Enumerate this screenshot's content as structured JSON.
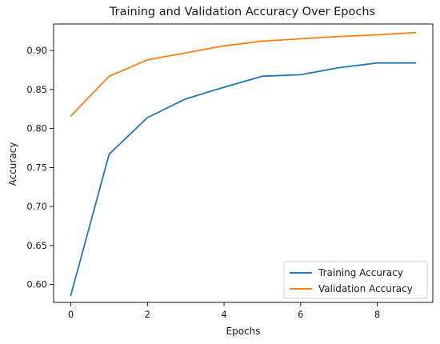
{
  "chart_data": {
    "type": "line",
    "title": "Training and Validation Accuracy Over Epochs",
    "xlabel": "Epochs",
    "ylabel": "Accuracy",
    "xlim": [
      -0.45,
      9.45
    ],
    "ylim": [
      0.577,
      0.934
    ],
    "xticks": [
      0,
      2,
      4,
      6,
      8
    ],
    "yticks": [
      0.6,
      0.65,
      0.7,
      0.75,
      0.8,
      0.85,
      0.9
    ],
    "x": [
      0,
      1,
      2,
      3,
      4,
      5,
      6,
      7,
      8,
      9
    ],
    "series": [
      {
        "name": "Training Accuracy",
        "color": "#1f77b4",
        "values": [
          0.586,
          0.767,
          0.814,
          0.838,
          0.853,
          0.867,
          0.869,
          0.878,
          0.884,
          0.884
        ]
      },
      {
        "name": "Validation Accuracy",
        "color": "#ff7f0e",
        "values": [
          0.816,
          0.867,
          0.888,
          0.897,
          0.906,
          0.912,
          0.915,
          0.918,
          0.92,
          0.923
        ]
      }
    ],
    "legend_position": "bottom-right",
    "grid": false
  }
}
